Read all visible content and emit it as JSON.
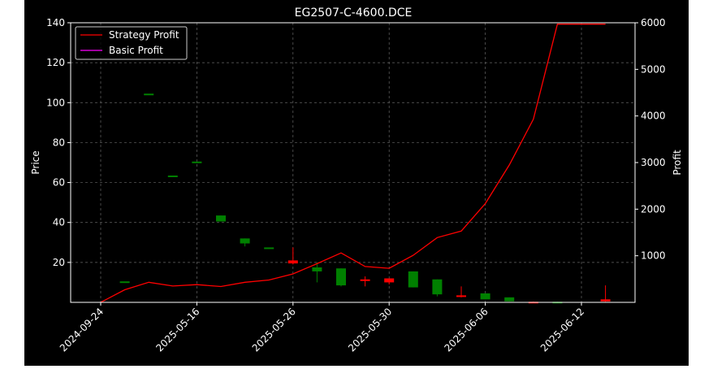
{
  "chart_data": {
    "type": "candlestick+line",
    "title": "EG2507-C-4600.DCE",
    "ylabel_left": "Price",
    "ylabel_right": "Profit",
    "ylim_left": [
      0,
      140
    ],
    "ylim_right": [
      0,
      6000
    ],
    "yticks_left": [
      20,
      40,
      60,
      80,
      100,
      120,
      140
    ],
    "yticks_right": [
      1000,
      2000,
      3000,
      4000,
      5000,
      6000
    ],
    "xtick_labels": [
      "2024-09-24",
      "2025-05-16",
      "2025-05-26",
      "2025-05-30",
      "2025-06-06",
      "2025-06-12"
    ],
    "xtick_indices": [
      0,
      4,
      8,
      12,
      16,
      20
    ],
    "grid": true,
    "legend_position": "top-left",
    "colors": {
      "up": "#008000",
      "down": "#ff0000",
      "strategy": "#ff0000",
      "basic": "#ff00ff"
    },
    "candles": [
      {
        "i": 1,
        "open": 10.5,
        "close": 10.5,
        "high": 10.5,
        "low": 10.5
      },
      {
        "i": 2,
        "open": 104.5,
        "close": 104.5,
        "high": 104.5,
        "low": 104.5
      },
      {
        "i": 3,
        "open": 63.5,
        "close": 63.5,
        "high": 63.5,
        "low": 63.5
      },
      {
        "i": 4,
        "open": 70.5,
        "close": 70.5,
        "high": 70.5,
        "low": 70.5
      },
      {
        "i": 5,
        "open": 40.5,
        "close": 43.5,
        "high": 43.5,
        "low": 40.5
      },
      {
        "i": 6,
        "open": 29.5,
        "close": 32.0,
        "high": 32.0,
        "low": 28.0
      },
      {
        "i": 7,
        "open": 27.5,
        "close": 27.5,
        "high": 27.5,
        "low": 27.5
      },
      {
        "i": 8,
        "open": 21.0,
        "close": 19.5,
        "high": 27.5,
        "low": 19.0
      },
      {
        "i": 9,
        "open": 15.5,
        "close": 17.5,
        "high": 20.0,
        "low": 10.0
      },
      {
        "i": 10,
        "open": 8.5,
        "close": 17.0,
        "high": 17.0,
        "low": 8.0
      },
      {
        "i": 11,
        "open": 11.5,
        "close": 11.0,
        "high": 13.0,
        "low": 8.0
      },
      {
        "i": 12,
        "open": 12.0,
        "close": 10.0,
        "high": 12.0,
        "low": 9.0
      },
      {
        "i": 13,
        "open": 7.5,
        "close": 15.5,
        "high": 15.5,
        "low": 7.5
      },
      {
        "i": 14,
        "open": 4.0,
        "close": 11.5,
        "high": 11.5,
        "low": 3.0
      },
      {
        "i": 15,
        "open": 3.5,
        "close": 3.0,
        "high": 8.0,
        "low": 2.5
      },
      {
        "i": 16,
        "open": 1.5,
        "close": 4.5,
        "high": 4.5,
        "low": 1.5
      },
      {
        "i": 17,
        "open": 0.5,
        "close": 2.5,
        "high": 2.5,
        "low": 0.5
      },
      {
        "i": 18,
        "open": 0.3,
        "close": 0.2,
        "high": 0.4,
        "low": 0.1
      },
      {
        "i": 19,
        "open": 0.2,
        "close": 0.3,
        "high": 0.3,
        "low": 0.1
      },
      {
        "i": 21,
        "open": 1.5,
        "close": 0.5,
        "high": 8.5,
        "low": 0.3
      }
    ],
    "series": [
      {
        "name": "Strategy Profit",
        "color": "#ff0000",
        "x": [
          0,
          1,
          2,
          3,
          4,
          5,
          6,
          7,
          8,
          9,
          10,
          11,
          12,
          13,
          14,
          15,
          16,
          17,
          18,
          19,
          20,
          21
        ],
        "y": [
          0,
          270,
          430,
          350,
          380,
          340,
          430,
          480,
          610,
          830,
          1060,
          770,
          730,
          1010,
          1390,
          1530,
          2120,
          2950,
          3930,
          5970,
          5970,
          5970
        ]
      },
      {
        "name": "Basic Profit",
        "color": "#ff00ff",
        "x": [],
        "y": []
      }
    ]
  }
}
